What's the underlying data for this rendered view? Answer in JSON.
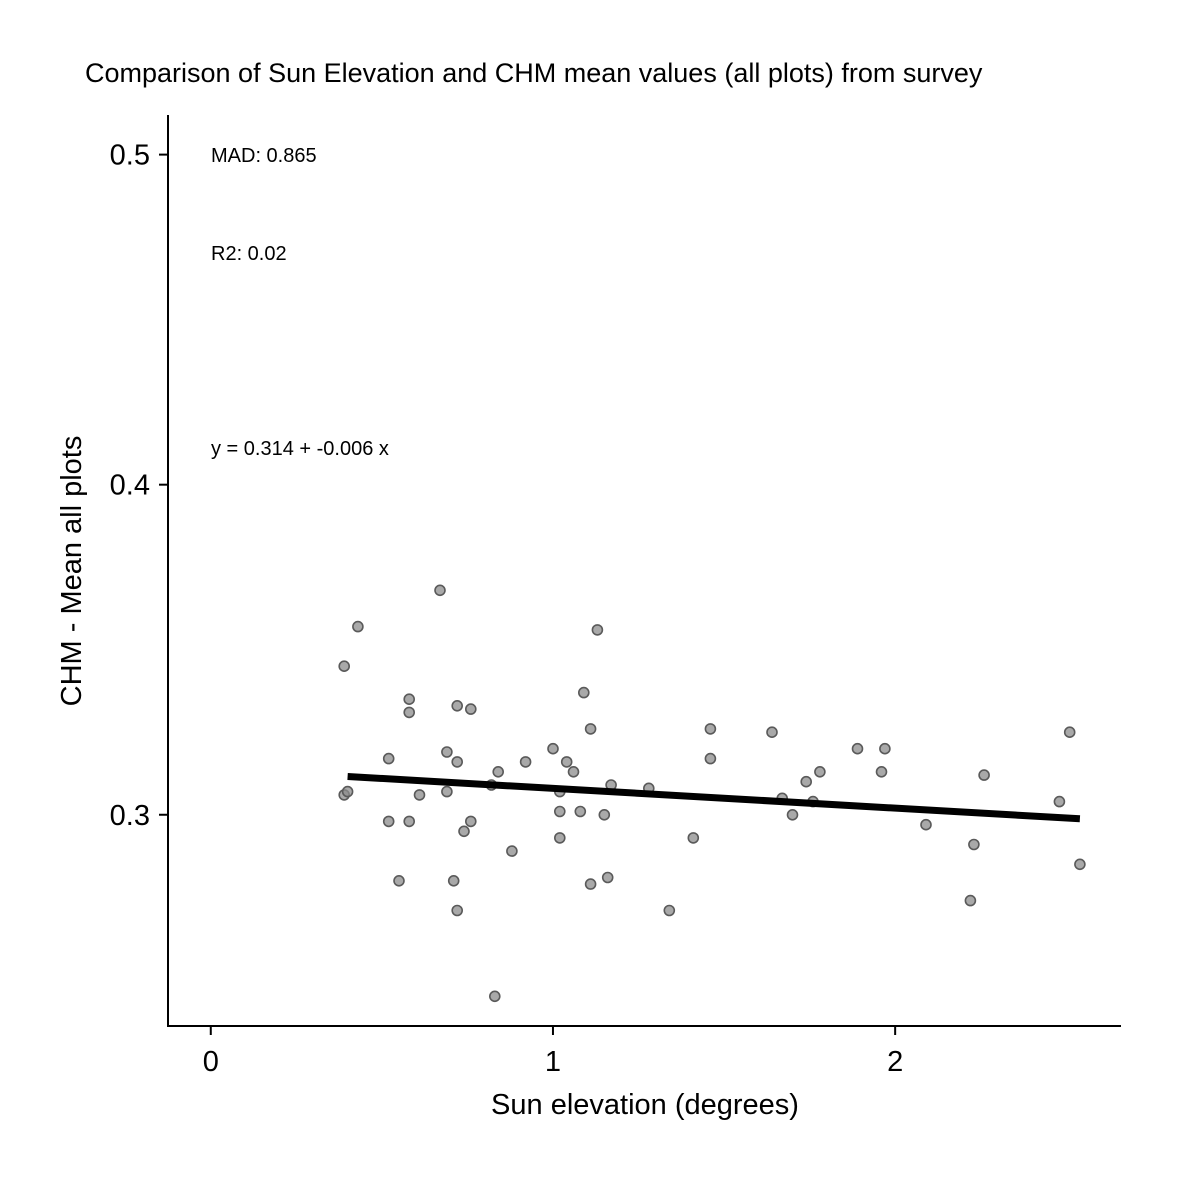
{
  "chart_data": {
    "type": "scatter",
    "title": "Comparison of Sun Elevation and CHM mean values (all plots) from survey",
    "xlabel": "Sun elevation (degrees)",
    "ylabel": "CHM - Mean all plots",
    "xlim": [
      -0.125,
      2.66
    ],
    "ylim": [
      0.236,
      0.512
    ],
    "x_ticks": [
      0,
      1,
      2
    ],
    "x_tick_labels": [
      "0",
      "1",
      "2"
    ],
    "y_ticks": [
      0.3,
      0.4,
      0.5
    ],
    "y_tick_labels": [
      "0.3",
      "0.4",
      "0.5"
    ],
    "grid": false,
    "point_color": "#8c8c8c",
    "point_stroke": "#5a5a5a",
    "line_color": "#000000",
    "annotations": {
      "mad": "MAD: 0.865",
      "r2": "R2: 0.02",
      "equation": "y =  0.314 + -0.006 x"
    },
    "fit_line": {
      "intercept": 0.314,
      "slope": -0.006,
      "x_range": [
        0.4,
        2.54
      ]
    },
    "series": [
      {
        "points": [
          [
            0.39,
            0.306
          ],
          [
            0.4,
            0.307
          ],
          [
            0.39,
            0.345
          ],
          [
            0.43,
            0.357
          ],
          [
            0.52,
            0.317
          ],
          [
            0.52,
            0.298
          ],
          [
            0.55,
            0.28
          ],
          [
            0.58,
            0.298
          ],
          [
            0.58,
            0.331
          ],
          [
            0.58,
            0.335
          ],
          [
            0.61,
            0.306
          ],
          [
            0.67,
            0.368
          ],
          [
            0.69,
            0.307
          ],
          [
            0.69,
            0.319
          ],
          [
            0.71,
            0.28
          ],
          [
            0.72,
            0.333
          ],
          [
            0.72,
            0.316
          ],
          [
            0.72,
            0.271
          ],
          [
            0.74,
            0.295
          ],
          [
            0.76,
            0.298
          ],
          [
            0.76,
            0.332
          ],
          [
            0.82,
            0.309
          ],
          [
            0.84,
            0.313
          ],
          [
            0.83,
            0.245
          ],
          [
            0.88,
            0.289
          ],
          [
            0.92,
            0.316
          ],
          [
            1.0,
            0.32
          ],
          [
            1.02,
            0.301
          ],
          [
            1.02,
            0.307
          ],
          [
            1.02,
            0.293
          ],
          [
            1.04,
            0.316
          ],
          [
            1.06,
            0.313
          ],
          [
            1.08,
            0.301
          ],
          [
            1.09,
            0.337
          ],
          [
            1.11,
            0.326
          ],
          [
            1.11,
            0.279
          ],
          [
            1.13,
            0.356
          ],
          [
            1.15,
            0.3
          ],
          [
            1.16,
            0.281
          ],
          [
            1.17,
            0.309
          ],
          [
            1.28,
            0.308
          ],
          [
            1.34,
            0.271
          ],
          [
            1.41,
            0.293
          ],
          [
            1.46,
            0.326
          ],
          [
            1.46,
            0.317
          ],
          [
            1.64,
            0.325
          ],
          [
            1.67,
            0.305
          ],
          [
            1.7,
            0.3
          ],
          [
            1.74,
            0.31
          ],
          [
            1.76,
            0.304
          ],
          [
            1.78,
            0.313
          ],
          [
            1.89,
            0.32
          ],
          [
            1.96,
            0.313
          ],
          [
            1.97,
            0.32
          ],
          [
            2.09,
            0.297
          ],
          [
            2.22,
            0.274
          ],
          [
            2.23,
            0.291
          ],
          [
            2.26,
            0.312
          ],
          [
            2.48,
            0.304
          ],
          [
            2.51,
            0.325
          ],
          [
            2.54,
            0.285
          ]
        ]
      }
    ]
  }
}
